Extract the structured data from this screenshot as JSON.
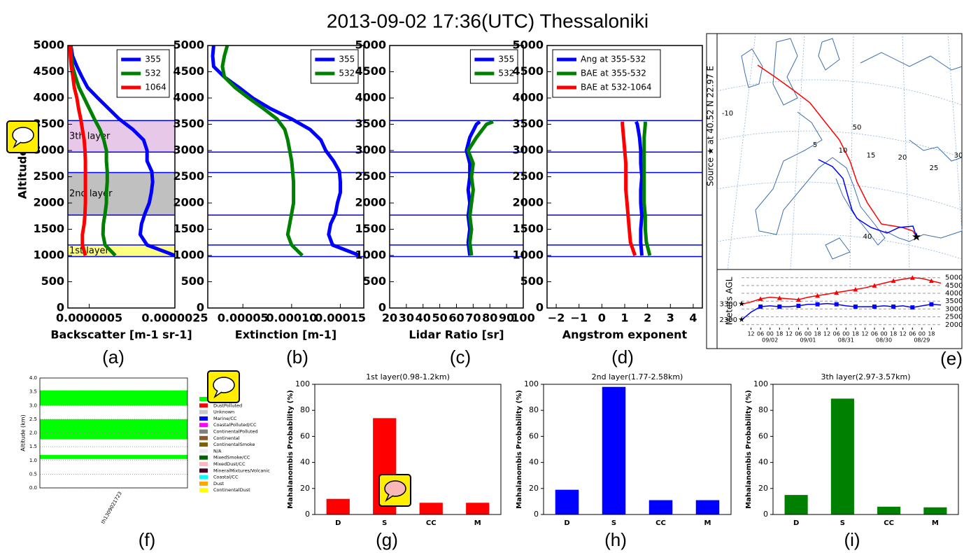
{
  "title": "2013-09-02 17:36(UTC) Thessaloniki",
  "map": {
    "panel": "(e)",
    "source_label": "Source ★ at 40.52 N 22.97 E",
    "grid_labels": [
      "-10",
      "5",
      "10",
      "15",
      "20",
      "25",
      "30",
      "40",
      "50"
    ]
  },
  "chart_data": [
    {
      "type": "profile",
      "panel": "(a)",
      "xlabel": "Backscatter [m-1 sr-1]",
      "ylabel": "Altitude[m]",
      "xlim": [
        0,
        2.5e-06
      ],
      "xticks": [
        {
          "value": 5e-07,
          "label": "0.0000005"
        },
        {
          "value": 2.5e-06,
          "label": "0.0000025"
        }
      ],
      "ylim": [
        0,
        5000
      ],
      "yticks": [
        0,
        500,
        1000,
        1500,
        2000,
        2500,
        3000,
        3500,
        4000,
        4500,
        5000
      ],
      "y": [
        1000,
        1200,
        1400,
        1600,
        1800,
        2000,
        2200,
        2400,
        2600,
        2800,
        3000,
        3200,
        3400,
        3600,
        3800,
        4000,
        4200,
        4400,
        4600,
        4800,
        5000
      ],
      "series": [
        {
          "name": "355",
          "color": "#0000ff",
          "values": [
            2.5e-06,
            1.85e-06,
            1.69e-06,
            1.72e-06,
            1.8e-06,
            1.9e-06,
            1.95e-06,
            1.98e-06,
            1.96e-06,
            1.85e-06,
            1.85e-06,
            1.77e-06,
            1.52e-06,
            1.2e-06,
            9.5e-07,
            7e-07,
            4.6e-07,
            3.3e-07,
            2.1e-07,
            1.1e-07,
            7e-08
          ]
        },
        {
          "name": "532",
          "color": "#008000",
          "values": [
            1.11e-06,
            8.7e-07,
            8.2e-07,
            8.3e-07,
            8.7e-07,
            9e-07,
            9e-07,
            9.2e-07,
            9.2e-07,
            9e-07,
            9e-07,
            8.4e-07,
            7.5e-07,
            6.2e-07,
            5e-07,
            3.8e-07,
            2.6e-07,
            1.8e-07,
            1.1e-07,
            8e-08,
            7e-08
          ]
        },
        {
          "name": "1064",
          "color": "#ff0000",
          "values": [
            4.1e-07,
            3.4e-07,
            3.4e-07,
            3.8e-07,
            4e-07,
            4.1e-07,
            4.1e-07,
            4.1e-07,
            4.1e-07,
            4.1e-07,
            4e-07,
            3.8e-07,
            3.4e-07,
            3e-07,
            2.5e-07,
            2.1e-07,
            1.5e-07,
            1.2e-07,
            8e-08,
            6e-08,
            5e-08
          ]
        }
      ],
      "legend": "upper right",
      "layers": [
        {
          "from": 980,
          "to": 1200,
          "label": "1st layer",
          "color": "#ffff80"
        },
        {
          "from": 1770,
          "to": 2580,
          "label": "2nd layer",
          "color": "#c0c0c0"
        },
        {
          "from": 2970,
          "to": 3570,
          "label": "3th layer",
          "color": "#e8c8e8"
        }
      ],
      "layer_line_color": "#0000ff"
    },
    {
      "type": "profile",
      "panel": "(b)",
      "xlabel": "Extinction [m-1]",
      "xlim": [
        1.4e-05,
        0.000174
      ],
      "xticks": [
        {
          "value": 5e-05,
          "label": "0.00005"
        },
        {
          "value": 0.0001,
          "label": "0.00010"
        },
        {
          "value": 0.00015,
          "label": "0.00015"
        }
      ],
      "ylim": [
        0,
        5000
      ],
      "yticks": [
        0,
        500,
        1000,
        1500,
        2000,
        2500,
        3000,
        3500,
        4000,
        4500,
        5000
      ],
      "y": [
        1000,
        1200,
        1400,
        1600,
        1800,
        2000,
        2200,
        2400,
        2600,
        2800,
        3000,
        3200,
        3400,
        3600,
        3800,
        4000,
        4200,
        4400,
        4600,
        4800,
        5000
      ],
      "series": [
        {
          "name": "355",
          "color": "#0000ff",
          "values": [
            0.00017,
            0.000142,
            0.000138,
            0.00014,
            0.000145,
            0.000147,
            0.00015,
            0.00015,
            0.000149,
            0.000143,
            0.000135,
            0.00013,
            0.000119,
            0.0001,
            7.8e-05,
            6e-05,
            4.6e-05,
            3.1e-05,
            2e-05,
            1.9e-05,
            2e-05
          ]
        },
        {
          "name": "532",
          "color": "#008000",
          "values": [
            0.000111,
            0.0001,
            9.6e-05,
            9.8e-05,
            0.0001,
            0.000102,
            0.000102,
            0.000102,
            0.000101,
            0.0001,
            9.8e-05,
            9.6e-05,
            9.3e-05,
            8.5e-05,
            7.1e-05,
            5.6e-05,
            4.2e-05,
            3.1e-05,
            2.9e-05,
            3.1e-05,
            3.4e-05
          ]
        }
      ],
      "legend": "upper right",
      "layer_lines": [
        980,
        1200,
        1770,
        2580,
        2970,
        3570
      ],
      "layer_line_color": "#0000ff"
    },
    {
      "type": "profile",
      "panel": "(c)",
      "xlabel": "Lidar Ratio [sr]",
      "xlim": [
        20,
        100
      ],
      "xticks": [
        20,
        30,
        40,
        50,
        60,
        70,
        80,
        90,
        100
      ],
      "ylim": [
        0,
        5000
      ],
      "yticks": [
        0,
        500,
        1000,
        1500,
        2000,
        2500,
        3000,
        3500,
        4000,
        4500,
        5000
      ],
      "y": [
        1000,
        1250,
        1500,
        1750,
        2000,
        2250,
        2500,
        2750,
        3000,
        3250,
        3500,
        3550
      ],
      "series": [
        {
          "name": "355",
          "color": "#0000ff",
          "values": [
            68,
            67,
            68,
            67,
            68,
            67,
            68,
            68,
            66,
            68,
            72,
            74
          ]
        },
        {
          "name": "532",
          "color": "#008000",
          "values": [
            69,
            68,
            69,
            68,
            69,
            70,
            69,
            70,
            67,
            72,
            78,
            82
          ]
        }
      ],
      "legend": "upper right",
      "layer_lines": [
        980,
        1200,
        1770,
        2580,
        2970,
        3570
      ],
      "layer_line_color": "#0000ff"
    },
    {
      "type": "profile",
      "panel": "(d)",
      "xlabel": "Angstrom exponent",
      "xlim": [
        -2.4,
        4.4
      ],
      "xticks": [
        {
          "value": -2,
          "label": "−2"
        },
        {
          "value": -1,
          "label": "−1"
        },
        0,
        1,
        2,
        3,
        4
      ],
      "ylim": [
        0,
        5000
      ],
      "yticks": [
        0,
        500,
        1000,
        1500,
        2000,
        2500,
        3000,
        3500,
        4000,
        4500,
        5000
      ],
      "y": [
        1000,
        1250,
        1500,
        1750,
        2000,
        2250,
        2500,
        2750,
        3000,
        3250,
        3500,
        3550
      ],
      "series": [
        {
          "name": "Ang at 355-532",
          "color": "#0000ff",
          "values": [
            1.75,
            1.7,
            1.7,
            1.75,
            1.7,
            1.7,
            1.75,
            1.7,
            1.7,
            1.65,
            1.55,
            1.5
          ]
        },
        {
          "name": "BAE at 355-532",
          "color": "#008000",
          "values": [
            2.1,
            1.95,
            1.9,
            1.9,
            1.85,
            1.85,
            1.85,
            1.85,
            1.85,
            1.85,
            1.9,
            1.9
          ]
        },
        {
          "name": "BAE at 532-1064",
          "color": "#ff0000",
          "values": [
            1.45,
            1.25,
            1.2,
            1.15,
            1.1,
            1.05,
            1.05,
            1.05,
            1.0,
            0.95,
            0.9,
            0.9
          ]
        }
      ],
      "legend": "upper left",
      "layer_lines": [
        980,
        1200,
        1770,
        2580,
        2970,
        3570
      ],
      "layer_line_color": "#0000ff"
    },
    {
      "type": "trajectory",
      "ylabel": "Meters AGL",
      "x": [
        0,
        6,
        12,
        18,
        24,
        30,
        36,
        42,
        48,
        54,
        60,
        66,
        72,
        78,
        84,
        90,
        96,
        102,
        108,
        114,
        120,
        126
      ],
      "xlim": [
        0,
        126
      ],
      "xticks": [
        {
          "value": 6,
          "label": "12"
        },
        {
          "value": 12,
          "label": "06"
        },
        {
          "value": 18,
          "label": "00"
        },
        {
          "value": 24,
          "label": "18"
        },
        {
          "value": 30,
          "label": "12"
        },
        {
          "value": 36,
          "label": "06"
        },
        {
          "value": 42,
          "label": "00"
        },
        {
          "value": 48,
          "label": "18"
        },
        {
          "value": 54,
          "label": "12"
        },
        {
          "value": 60,
          "label": "06"
        },
        {
          "value": 66,
          "label": "00"
        },
        {
          "value": 72,
          "label": "18"
        },
        {
          "value": 78,
          "label": "12"
        },
        {
          "value": 84,
          "label": "06"
        },
        {
          "value": 90,
          "label": "00"
        },
        {
          "value": 96,
          "label": "18"
        },
        {
          "value": 102,
          "label": "12"
        },
        {
          "value": 108,
          "label": "06"
        },
        {
          "value": 114,
          "label": "00"
        },
        {
          "value": 120,
          "label": "18"
        }
      ],
      "date_labels": [
        {
          "value": 18,
          "label": "09/02"
        },
        {
          "value": 42,
          "label": "09/01"
        },
        {
          "value": 66,
          "label": "08/31"
        },
        {
          "value": 90,
          "label": "08/30"
        },
        {
          "value": 114,
          "label": "08/29"
        }
      ],
      "ylim": [
        1900,
        5300
      ],
      "yticks": [
        2000,
        2500,
        3000,
        3500,
        4000,
        4500,
        5000
      ],
      "grid": true,
      "start_labels": [
        "3300",
        "2300"
      ],
      "series": [
        {
          "color": "#ff0000",
          "marker": "triangle",
          "values": [
            3300,
            3450,
            3650,
            3750,
            3700,
            3650,
            3600,
            3750,
            3850,
            3950,
            4050,
            4150,
            4250,
            4350,
            4500,
            4650,
            4800,
            4900,
            5000,
            4950,
            4800,
            4650
          ]
        },
        {
          "color": "#0000ff",
          "marker": "square",
          "values": [
            2300,
            2800,
            3150,
            3200,
            3150,
            3150,
            3200,
            3300,
            3300,
            3350,
            3300,
            3200,
            3150,
            3150,
            3150,
            3200,
            3150,
            3200,
            3100,
            3200,
            3300,
            3250
          ]
        }
      ]
    },
    {
      "type": "classification",
      "panel": "(f)",
      "ylabel": "Altitude (km)",
      "xlabel": "th1309021723",
      "ylim": [
        0,
        4
      ],
      "yticks": [
        {
          "value": 0,
          "label": "0.0"
        },
        0.5,
        {
          "value": 1,
          "label": "1.0"
        },
        1.5,
        {
          "value": 2,
          "label": "2.0"
        },
        2.5,
        {
          "value": 3,
          "label": "3.0"
        },
        3.5,
        {
          "value": 4,
          "label": "4.0"
        }
      ],
      "segments": [
        {
          "from": 1.05,
          "to": 1.2,
          "color": "#00ff00"
        },
        {
          "from": 1.77,
          "to": 2.5,
          "color": "#00ff00"
        },
        {
          "from": 3.0,
          "to": 3.55,
          "color": "#00ff00"
        }
      ],
      "legend_items": [
        {
          "name": null,
          "color": "#00ff00"
        },
        {
          "name": "DustPolluted",
          "color": "#ff0000"
        },
        {
          "name": "Unknown",
          "color": "#c8c8c8"
        },
        {
          "name": "Marine/CC",
          "color": "#0000ff"
        },
        {
          "name": "CoastalPolluted/CC",
          "color": "#ff00ff"
        },
        {
          "name": "ContinentalPolluted",
          "color": "#808080"
        },
        {
          "name": "Continental",
          "color": "#8b5a2b"
        },
        {
          "name": "ContinentalSmoke",
          "color": "#7f6000"
        },
        {
          "name": "N/A",
          "color": "#eeeeee"
        },
        {
          "name": "MixedSmoke/CC",
          "color": "#006400"
        },
        {
          "name": "MixedDust/CC",
          "color": "#ffb6c1"
        },
        {
          "name": "MineralMixtures/Volcanic",
          "color": "#4b0020"
        },
        {
          "name": "Coastal/CC",
          "color": "#00ffff"
        },
        {
          "name": "Dust",
          "color": "#ffa500"
        },
        {
          "name": "ContinentalDust",
          "color": "#ffff00"
        }
      ]
    },
    {
      "type": "bar",
      "panel": "(g)",
      "title": "1st layer(0.98-1.2km)",
      "ylabel": "Mahalanombis Probability (%)",
      "categories": [
        "D",
        "S",
        "CC",
        "M"
      ],
      "values": [
        12,
        74,
        9,
        9
      ],
      "color": "#ff0000",
      "ylim": [
        0,
        100
      ],
      "yticks": [
        0,
        20,
        40,
        60,
        80,
        100
      ]
    },
    {
      "type": "bar",
      "panel": "(h)",
      "title": "2nd layer(1.77-2.58km)",
      "ylabel": "Mahalanombis Probability (%)",
      "categories": [
        "D",
        "S",
        "CC",
        "M"
      ],
      "values": [
        19,
        98,
        11,
        11
      ],
      "color": "#0000ff",
      "ylim": [
        0,
        100
      ],
      "yticks": [
        0,
        20,
        40,
        60,
        80,
        100
      ]
    },
    {
      "type": "bar",
      "panel": "(i)",
      "title": "3th layer(2.97-3.57km)",
      "ylabel": "Mahalanombis Probability (%)",
      "categories": [
        "D",
        "S",
        "CC",
        "M"
      ],
      "values": [
        15,
        89,
        6,
        5.5
      ],
      "color": "#008000",
      "ylim": [
        0,
        100
      ],
      "yticks": [
        0,
        20,
        40,
        60,
        80,
        100
      ]
    }
  ]
}
